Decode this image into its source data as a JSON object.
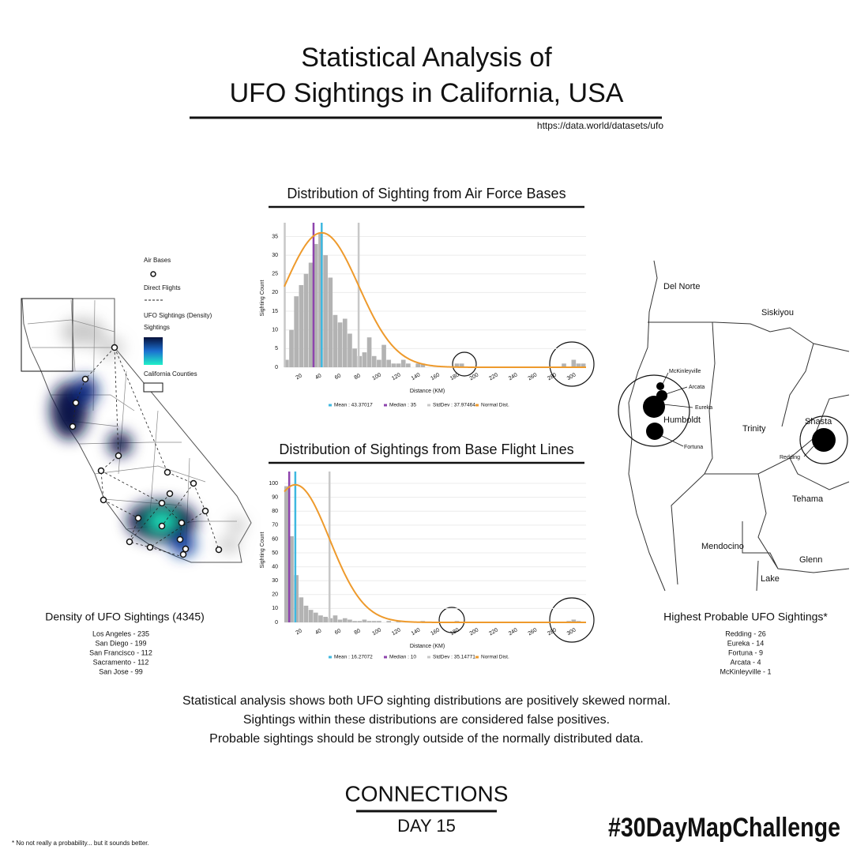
{
  "header": {
    "title": [
      "Statistical Analysis of",
      "UFO Sightings in California, USA"
    ],
    "source": "https://data.world/datasets/ufo"
  },
  "chart_data": [
    {
      "type": "histogram",
      "title": "Distribution of Sighting from Air Force Bases",
      "x_label": "Distance (KM)",
      "y_label": "Sighting Count",
      "color": "#b3b3b3",
      "grid": true,
      "bins": [
        5,
        10,
        15,
        20,
        25,
        30,
        35,
        40,
        45,
        50,
        55,
        60,
        65,
        70,
        75,
        80,
        85,
        90,
        95,
        100,
        105,
        110,
        115,
        120,
        125,
        130,
        135,
        140,
        145,
        150,
        155,
        160,
        165,
        170,
        175,
        180,
        185,
        190,
        195,
        200,
        205,
        210,
        215,
        220,
        225,
        230,
        235,
        240,
        245,
        250,
        255,
        260,
        265,
        270,
        275,
        280,
        285,
        290,
        295,
        300,
        305,
        310,
        315
      ],
      "counts": [
        2,
        10,
        19,
        22,
        25,
        28,
        33,
        36,
        30,
        24,
        14,
        12,
        13,
        9,
        5,
        3,
        4,
        8,
        3,
        2,
        6,
        2,
        1,
        1,
        2,
        1,
        0,
        1,
        1,
        0,
        0,
        0,
        0,
        0,
        0,
        1,
        1,
        0,
        0,
        0,
        0,
        0,
        0,
        0,
        0,
        0,
        0,
        0,
        0,
        0,
        0,
        0,
        0,
        0,
        0,
        0,
        0,
        1,
        0,
        2,
        1,
        1
      ],
      "xlim": [
        5,
        315
      ],
      "xticks": [
        20,
        40,
        60,
        80,
        100,
        120,
        140,
        160,
        180,
        200,
        220,
        240,
        260,
        280,
        300
      ],
      "ylim": [
        0,
        37
      ],
      "yticks": [
        0,
        5,
        10,
        15,
        20,
        25,
        30,
        35
      ],
      "stats": {
        "mean": {
          "label": "Mean : 43.37017",
          "value": 43.37017,
          "color": "#3fb8e0"
        },
        "median": {
          "label": "Median : 35",
          "value": 35,
          "color": "#8e44ad"
        },
        "stddev": {
          "label": "StdDev : 37.97464",
          "value": 37.97464,
          "color": "#c8c8c8"
        }
      },
      "curve": {
        "label": "Normal Dist.",
        "peak": 36,
        "color": "#ee9a2c"
      }
    },
    {
      "type": "histogram",
      "title": "Distribution of Sightings from Base Flight Lines",
      "x_label": "Distance (KM)",
      "y_label": "Sighting Count",
      "color": "#b3b3b3",
      "grid": true,
      "bins": [
        5,
        10,
        15,
        20,
        25,
        30,
        35,
        40,
        45,
        50,
        55,
        60,
        65,
        70,
        75,
        80,
        85,
        90,
        95,
        100,
        105,
        110,
        115,
        120,
        125,
        130,
        135,
        140,
        145,
        150,
        155,
        160,
        165,
        170,
        175,
        180,
        185,
        190,
        195,
        200,
        205,
        210,
        215,
        220,
        225,
        230,
        235,
        240,
        245,
        250,
        255,
        260,
        265,
        270,
        275,
        280,
        285,
        290,
        295,
        300,
        305,
        310,
        315
      ],
      "counts": [
        98,
        62,
        34,
        18,
        12,
        9,
        7,
        5,
        4,
        3,
        5,
        2,
        3,
        2,
        1,
        1,
        2,
        1,
        1,
        1,
        0,
        1,
        0,
        1,
        0,
        0,
        0,
        0,
        1,
        0,
        0,
        0,
        0,
        0,
        0,
        1,
        0,
        0,
        0,
        0,
        0,
        0,
        0,
        0,
        0,
        0,
        0,
        0,
        0,
        0,
        0,
        0,
        0,
        0,
        0,
        0,
        0,
        0,
        1,
        2,
        1,
        0
      ],
      "xlim": [
        5,
        315
      ],
      "xticks": [
        20,
        40,
        60,
        80,
        100,
        120,
        140,
        160,
        180,
        200,
        220,
        240,
        260,
        280,
        300
      ],
      "ylim": [
        0,
        104
      ],
      "yticks": [
        0,
        10,
        20,
        30,
        40,
        50,
        60,
        70,
        80,
        90,
        100
      ],
      "stats": {
        "mean": {
          "label": "Mean : 16.27072",
          "value": 16.27072,
          "color": "#3fb8e0"
        },
        "median": {
          "label": "Median : 10",
          "value": 10,
          "color": "#8e44ad"
        },
        "stddev": {
          "label": "StdDev : 35.14771",
          "value": 35.14771,
          "color": "#c8c8c8"
        }
      },
      "curve": {
        "label": "Normal Dist.",
        "peak": 99,
        "color": "#ee9a2c"
      }
    }
  ],
  "left_map": {
    "legend": [
      "Air Bases",
      "Direct Flights",
      "UFO Sightings (Density)",
      "Sightings",
      "California Counties"
    ],
    "caption": "Density of UFO Sightings (4345)",
    "list": [
      "Los Angeles - 235",
      "San Diego - 199",
      "San Francisco - 112",
      "Sacramento - 112",
      "San Jose - 99"
    ]
  },
  "right_map": {
    "counties": [
      "Del Norte",
      "Siskiyou",
      "Humboldt",
      "Trinity",
      "Shasta",
      "Tehama",
      "Mendocino",
      "Glenn",
      "Lake"
    ],
    "cities": [
      "McKinleyville",
      "Arcata",
      "Eureka",
      "Fortuna",
      "Redding"
    ],
    "caption": "Highest Probable UFO Sightings*",
    "list": [
      "Redding - 26",
      "Eureka - 14",
      "Fortuna - 9",
      "Arcata - 4",
      "McKinleyville - 1"
    ]
  },
  "summary": [
    "Statistical analysis shows both UFO sighting distributions are positively skewed normal.",
    "Sightings within these distributions are considered false positives.",
    "Probable sightings should be strongly outside of the normally distributed data."
  ],
  "footer": {
    "theme": "CONNECTIONS",
    "day": "DAY 15",
    "hashtag": "#30DayMapChallenge",
    "footnote": "* No not really a probability... but it sounds better."
  }
}
